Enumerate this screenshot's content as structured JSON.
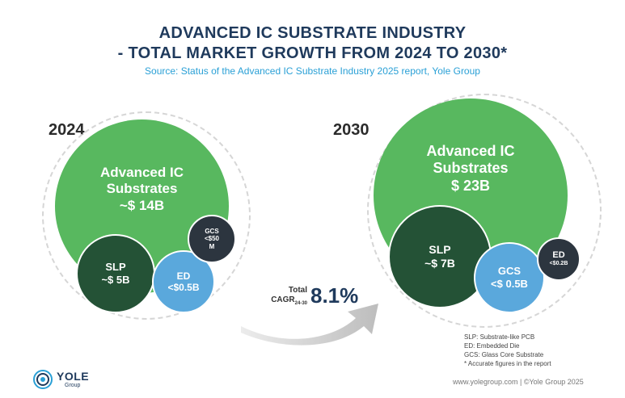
{
  "header": {
    "title_line1": "ADVANCED IC SUBSTRATE INDUSTRY",
    "title_line2": "- TOTAL MARKET GROWTH FROM 2024 TO 2030*",
    "source": "Source: Status of the Advanced IC Substrate Industry 2025 report, Yole Group"
  },
  "y2024": {
    "year": "2024",
    "main": {
      "line1": "Advanced IC",
      "line2": "Substrates",
      "line3": "~$ 14B"
    },
    "slp": {
      "line1": "SLP",
      "line2": "~$ 5B"
    },
    "ed": {
      "line1": "ED",
      "line2": "<$0.5B"
    },
    "gcs": {
      "line1": "GCS",
      "line2": "<$50",
      "line3": "M"
    }
  },
  "y2030": {
    "year": "2030",
    "main": {
      "line1": "Advanced IC",
      "line2": "Substrates",
      "line3": "$ 23B"
    },
    "slp": {
      "line1": "SLP",
      "line2": "~$ 7B"
    },
    "gcs": {
      "line1": "GCS",
      "line2": "<$ 0.5B"
    },
    "ed": {
      "line1": "ED",
      "line2": "<$0.2B"
    }
  },
  "cagr": {
    "label_total": "Total",
    "label_cagr": "CAGR",
    "label_sub": "24-30",
    "value": "8.1%"
  },
  "legend": {
    "slp": "SLP: Substrate-like PCB",
    "ed": "ED: Embedded Die",
    "gcs": "GCS: Glass Core Substrate",
    "note": "* Accurate figures in the report"
  },
  "footer": {
    "logo": "YOLE",
    "logo_sub": "Group",
    "copyright": "www.yolegroup.com | ©Yole Group 2025"
  },
  "colors": {
    "green": "#58b85f",
    "dark_green": "#245236",
    "blue": "#5aa8dc",
    "dark": "#2c353f",
    "title": "#1f3a5c"
  }
}
